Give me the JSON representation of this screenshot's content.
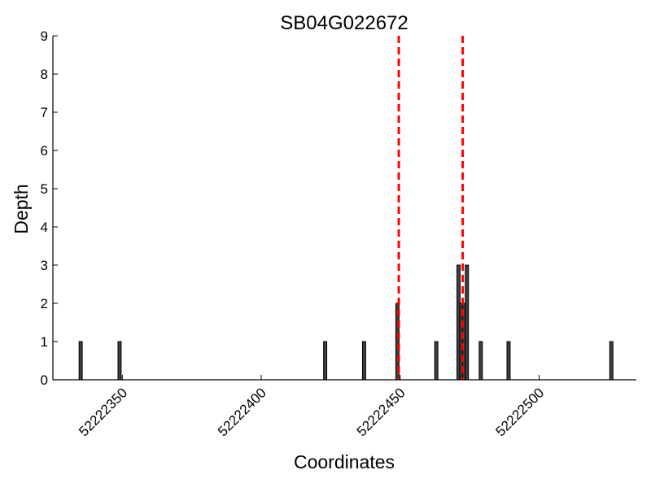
{
  "chart_data": {
    "type": "bar",
    "title": "SB04G022672",
    "xlabel": "Coordinates",
    "ylabel": "Depth",
    "xlim": [
      52222325,
      52222535
    ],
    "ylim": [
      0,
      9
    ],
    "x_ticks": [
      52222350,
      52222400,
      52222450,
      52222500
    ],
    "y_ticks": [
      0,
      1,
      2,
      3,
      4,
      5,
      6,
      7,
      8,
      9
    ],
    "grid": false,
    "bars": [
      {
        "x": 52222335,
        "value": 1
      },
      {
        "x": 52222349,
        "value": 1
      },
      {
        "x": 52222423,
        "value": 1
      },
      {
        "x": 52222437,
        "value": 1
      },
      {
        "x": 52222449,
        "value": 2
      },
      {
        "x": 52222463,
        "value": 1
      },
      {
        "x": 52222471,
        "value": 3
      },
      {
        "x": 52222472,
        "value": 2
      },
      {
        "x": 52222473,
        "value": 2
      },
      {
        "x": 52222474,
        "value": 3
      },
      {
        "x": 52222479,
        "value": 1
      },
      {
        "x": 52222489,
        "value": 1
      },
      {
        "x": 52222526,
        "value": 1
      }
    ],
    "bar_color": "#3f3f3f",
    "vlines": [
      {
        "x": 52222449.5,
        "style": "dashed",
        "color": "#ff0000"
      },
      {
        "x": 52222472.5,
        "style": "dashed",
        "color": "#ff0000"
      }
    ]
  }
}
